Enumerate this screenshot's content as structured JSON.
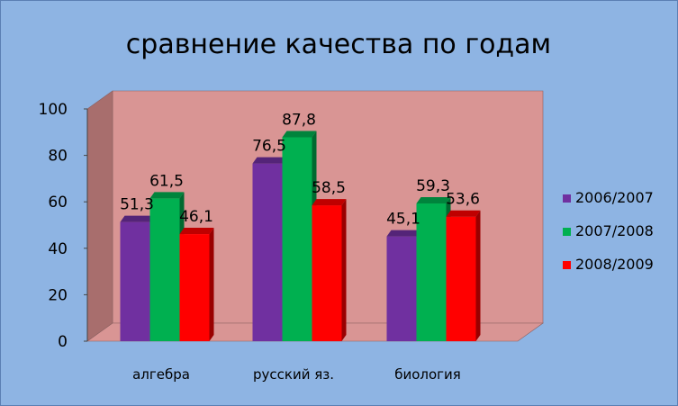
{
  "chart_data": {
    "type": "bar",
    "title": "сравнение качества по годам",
    "categories": [
      "алгебра",
      "русский яз.",
      "биология"
    ],
    "series": [
      {
        "name": "2006/2007",
        "values": [
          51.3,
          76.5,
          45.1
        ],
        "labels": [
          "51,3",
          "76,5",
          "45,1"
        ],
        "color": "#7030a0"
      },
      {
        "name": "2007/2008",
        "values": [
          61.5,
          87.8,
          59.3
        ],
        "labels": [
          "61,5",
          "87,8",
          "59,3"
        ],
        "color": "#00b050"
      },
      {
        "name": "2008/2009",
        "values": [
          46.1,
          58.5,
          53.6
        ],
        "labels": [
          "46,1",
          "58,5",
          "53,6"
        ],
        "color": "#ff0000"
      }
    ],
    "yticks": [
      "0",
      "20",
      "40",
      "60",
      "80",
      "100"
    ],
    "ylim": [
      0,
      100
    ],
    "grid": false,
    "legend": "right",
    "colors": {
      "background": "#8eb4e3",
      "plot_wall": "#d99594",
      "plot_floor": "#d99594"
    }
  }
}
